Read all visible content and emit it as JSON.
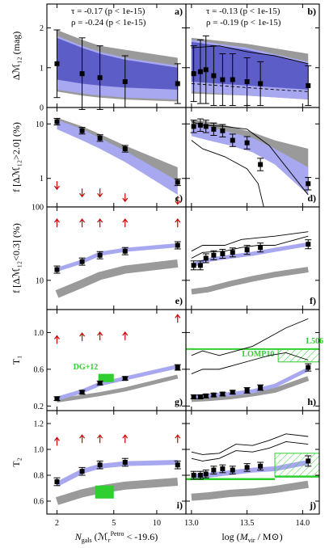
{
  "figure": {
    "colors": {
      "grey_band": "#9a9a9a",
      "blue_dark": "#5d5dc8",
      "blue_light": "#a8a8f0",
      "point": "#000000",
      "arrow": "#cc0000",
      "green": "#2fcf2f"
    },
    "xaxis_left": {
      "label_main": "N",
      "label_sub": "gals",
      "label_paren": "(ℳ",
      "label_rsup": "Petro",
      "label_rsub": "r",
      "label_tail": " < -19.6)",
      "ticks": [
        "2",
        "5",
        "10"
      ]
    },
    "xaxis_right": {
      "label": "log (M_vir / M⊙)",
      "label_pre": "log (",
      "label_M": "M",
      "label_sub": "vir",
      "label_tail": " / M⊙)",
      "ticks": [
        "13.0",
        "13.5",
        "14.0"
      ]
    },
    "rows": [
      {
        "ylabel": "Δℳ₁₂ (mag)",
        "yticks": [
          "0",
          "1",
          "2"
        ]
      },
      {
        "ylabel": "f [Δℳ₁₂>2.0]  (%)",
        "yticks": [
          "1",
          "10"
        ]
      },
      {
        "ylabel": "f [Δℳ₁₂<0.3]  (%)",
        "yticks": [
          "10",
          "100"
        ]
      },
      {
        "ylabel": "T₁",
        "yticks": [
          "0.2",
          "0.6",
          "1.0"
        ]
      },
      {
        "ylabel": "T₂",
        "yticks": [
          "0.6",
          "0.8",
          "1.0",
          "1.2"
        ]
      }
    ],
    "panel_labels": [
      "a)",
      "b)",
      "c)",
      "d)",
      "e)",
      "f)",
      "g)",
      "h)",
      "i)",
      "j)"
    ],
    "stats_left": [
      "τ = -0.17 (p < 1e-15)",
      "ρ = -0.24 (p < 1e-15)"
    ],
    "stats_right": [
      "τ = -0.13 (p < 1e-15)",
      "ρ = -0.19 (p < 1e-15)"
    ],
    "annotations": {
      "dg12": "DG+12",
      "l506": "L506",
      "lomp10": "LOMP10"
    }
  },
  "chart_data": [
    {
      "panel": "a",
      "type": "scatter",
      "xlabel": "N_gals",
      "ylabel": "ΔM12 (mag)",
      "xscale": "log",
      "xlim": [
        1.7,
        16
      ],
      "ylim": [
        0,
        2.6
      ],
      "x": [
        2,
        3,
        4,
        6,
        14
      ],
      "y": [
        1.1,
        0.85,
        0.75,
        0.65,
        0.6
      ],
      "yerr": [
        0.85,
        0.9,
        0.8,
        0.65,
        0.5
      ],
      "band_grey": {
        "x": [
          2,
          3,
          4,
          6,
          14
        ],
        "lo": [
          0.4,
          0.3,
          0.25,
          0.2,
          0.15
        ],
        "hi": [
          1.95,
          1.7,
          1.55,
          1.45,
          1.25
        ]
      },
      "band_blue": {
        "x": [
          2,
          3,
          4,
          6,
          14
        ],
        "lo": [
          0.45,
          0.35,
          0.3,
          0.25,
          0.2
        ],
        "hi": [
          1.8,
          1.55,
          1.4,
          1.25,
          1.05
        ]
      }
    },
    {
      "panel": "b",
      "type": "scatter",
      "xlabel": "log(M_vir/Msun)",
      "xlim": [
        12.95,
        14.15
      ],
      "ylim": [
        0,
        2.6
      ],
      "x": [
        13.02,
        13.08,
        13.13,
        13.2,
        13.28,
        13.37,
        13.5,
        13.62,
        14.05
      ],
      "y": [
        0.85,
        0.9,
        0.95,
        0.8,
        0.7,
        0.7,
        0.65,
        0.6,
        0.55
      ],
      "yerr": [
        0.7,
        0.8,
        0.85,
        0.75,
        0.65,
        0.65,
        0.6,
        0.55,
        0.5
      ],
      "band_grey": {
        "x": [
          13.0,
          13.5,
          14.05
        ],
        "lo": [
          0.35,
          0.3,
          0.2
        ],
        "hi": [
          1.75,
          1.6,
          1.35
        ]
      },
      "band_blue": {
        "x": [
          13.0,
          13.5,
          14.05
        ],
        "lo": [
          0.4,
          0.3,
          0.2
        ],
        "hi": [
          1.7,
          1.5,
          1.15
        ]
      }
    },
    {
      "panel": "c",
      "type": "scatter",
      "xscale": "log",
      "yscale": "log",
      "xlim": [
        1.7,
        16
      ],
      "ylim": [
        0.3,
        20
      ],
      "x": [
        2,
        3,
        4,
        6,
        14
      ],
      "y": [
        11,
        7.5,
        5.5,
        3.5,
        0.85
      ],
      "yerr_factor": 1.15,
      "upper_limits": {
        "x": [
          2,
          3,
          4,
          6,
          14
        ],
        "y": [
          0.75,
          0.55,
          0.55,
          0.45,
          0.4
        ]
      }
    },
    {
      "panel": "d",
      "type": "scatter",
      "yscale": "log",
      "xlim": [
        12.95,
        14.15
      ],
      "ylim": [
        0.3,
        20
      ],
      "x": [
        13.02,
        13.08,
        13.13,
        13.2,
        13.28,
        13.37,
        13.5,
        13.62,
        14.05
      ],
      "y": [
        9,
        9.5,
        9,
        8,
        7.5,
        5,
        4.5,
        1.8,
        0.8
      ],
      "yerr_factor": 1.3
    },
    {
      "panel": "e",
      "type": "scatter",
      "xscale": "log",
      "yscale": "log",
      "xlim": [
        1.7,
        16
      ],
      "ylim": [
        4,
        100
      ],
      "x": [
        2,
        3,
        4,
        6,
        14
      ],
      "y": [
        14,
        18,
        22,
        25,
        30
      ],
      "yerr_factor": 1.12,
      "lower_limits": {
        "x": [
          2,
          3,
          4,
          6,
          14
        ],
        "y": [
          60,
          60,
          60,
          60,
          60
        ]
      }
    },
    {
      "panel": "f",
      "type": "scatter",
      "yscale": "log",
      "xlim": [
        12.95,
        14.15
      ],
      "ylim": [
        4,
        100
      ],
      "x": [
        13.02,
        13.08,
        13.13,
        13.2,
        13.28,
        13.37,
        13.5,
        13.62,
        14.05
      ],
      "y": [
        16,
        16,
        20,
        22,
        23,
        24,
        26,
        28,
        31
      ],
      "yerr_factor": 1.15
    },
    {
      "panel": "g",
      "type": "scatter",
      "xscale": "log",
      "xlim": [
        1.7,
        16
      ],
      "ylim": [
        0.15,
        1.25
      ],
      "x": [
        2,
        3,
        4,
        6,
        14
      ],
      "y": [
        0.28,
        0.35,
        0.45,
        0.5,
        0.62
      ],
      "yerr": [
        0.02,
        0.02,
        0.02,
        0.02,
        0.03
      ],
      "lower_limits": {
        "x": [
          2,
          3,
          4,
          6,
          14
        ],
        "y": [
          0.92,
          0.95,
          0.96,
          0.96,
          1.15
        ]
      }
    },
    {
      "panel": "h",
      "type": "scatter",
      "xlim": [
        12.95,
        14.15
      ],
      "ylim": [
        0.15,
        1.25
      ],
      "x": [
        13.02,
        13.08,
        13.13,
        13.2,
        13.28,
        13.37,
        13.5,
        13.62,
        14.05
      ],
      "y": [
        0.3,
        0.3,
        0.31,
        0.32,
        0.33,
        0.35,
        0.37,
        0.4,
        0.62
      ],
      "yerr": [
        0.02,
        0.02,
        0.02,
        0.02,
        0.02,
        0.02,
        0.03,
        0.03,
        0.04
      ]
    },
    {
      "panel": "i",
      "type": "scatter",
      "xscale": "log",
      "xlim": [
        1.7,
        16
      ],
      "ylim": [
        0.5,
        1.3
      ],
      "x": [
        2,
        3,
        4,
        6,
        14
      ],
      "y": [
        0.75,
        0.83,
        0.88,
        0.9,
        0.88
      ],
      "yerr": [
        0.03,
        0.03,
        0.03,
        0.03,
        0.03
      ],
      "lower_limits": {
        "x": [
          2,
          3,
          4,
          6,
          14
        ],
        "y": [
          1.06,
          1.08,
          1.08,
          1.08,
          1.08
        ]
      }
    },
    {
      "panel": "j",
      "type": "scatter",
      "xlim": [
        12.95,
        14.15
      ],
      "ylim": [
        0.5,
        1.3
      ],
      "x": [
        13.02,
        13.08,
        13.13,
        13.2,
        13.28,
        13.37,
        13.5,
        13.62,
        14.05
      ],
      "y": [
        0.8,
        0.8,
        0.81,
        0.84,
        0.85,
        0.84,
        0.86,
        0.87,
        0.91
      ],
      "yerr": [
        0.03,
        0.03,
        0.03,
        0.03,
        0.03,
        0.03,
        0.03,
        0.03,
        0.04
      ]
    }
  ]
}
